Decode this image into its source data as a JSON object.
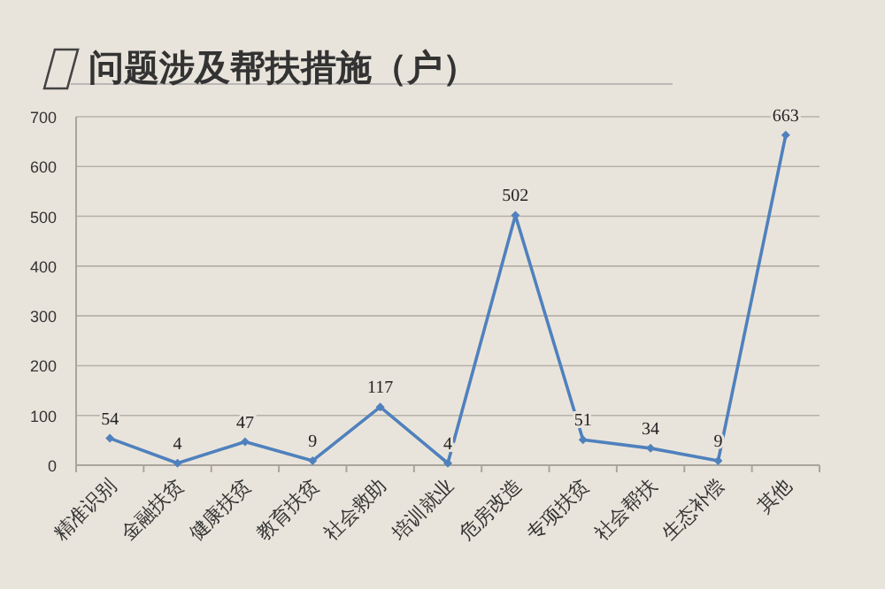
{
  "chart_data": {
    "type": "line",
    "title": "问题涉及帮扶措施（户）",
    "categories": [
      "精准识别",
      "金融扶贫",
      "健康扶贫",
      "教育扶贫",
      "社会救助",
      "培训就业",
      "危房改造",
      "专项扶贫",
      "社会帮扶",
      "生态补偿",
      "其他"
    ],
    "series": [
      {
        "color": "#4f81bd",
        "values": [
          54,
          4,
          47,
          9,
          117,
          4,
          502,
          51,
          34,
          9,
          663
        ]
      }
    ],
    "ylim": [
      0,
      700
    ],
    "yticks": [
      0,
      100,
      200,
      300,
      400,
      500,
      600,
      700
    ],
    "grid": "y",
    "data_labels": true,
    "marker": "diamond",
    "line_style": "solid"
  }
}
